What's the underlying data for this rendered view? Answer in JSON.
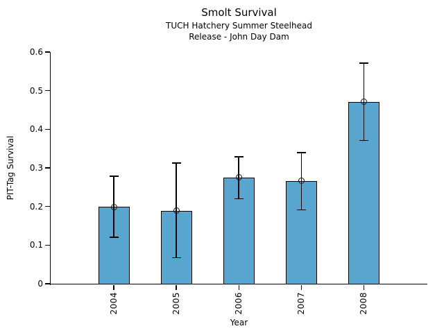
{
  "chart_data": {
    "type": "bar",
    "title": "Smolt Survival",
    "subtitle": [
      "TUCH Hatchery Summer Steelhead",
      "Release - John Day Dam"
    ],
    "xlabel": "Year",
    "ylabel": "PIT-Tag Survival",
    "categories": [
      "2004",
      "2005",
      "2006",
      "2007",
      "2008"
    ],
    "values": [
      0.199,
      0.189,
      0.275,
      0.266,
      0.471
    ],
    "error_low": [
      0.12,
      0.067,
      0.22,
      0.191,
      0.371
    ],
    "error_high": [
      0.278,
      0.313,
      0.329,
      0.34,
      0.571
    ],
    "ylim": [
      0,
      0.6
    ],
    "ytick_values": [
      0,
      0.1,
      0.2,
      0.3,
      0.4,
      0.5,
      0.6
    ],
    "ytick_labels": [
      "0",
      "0.1",
      "0.2",
      "0.3",
      "0.4",
      "0.5",
      "0.6"
    ],
    "grid": false,
    "legend": "none",
    "bar_color": "#58A6CF",
    "bar_edge_color": "#000000",
    "error_bar_color": "#000000",
    "marker": "open-circle"
  }
}
